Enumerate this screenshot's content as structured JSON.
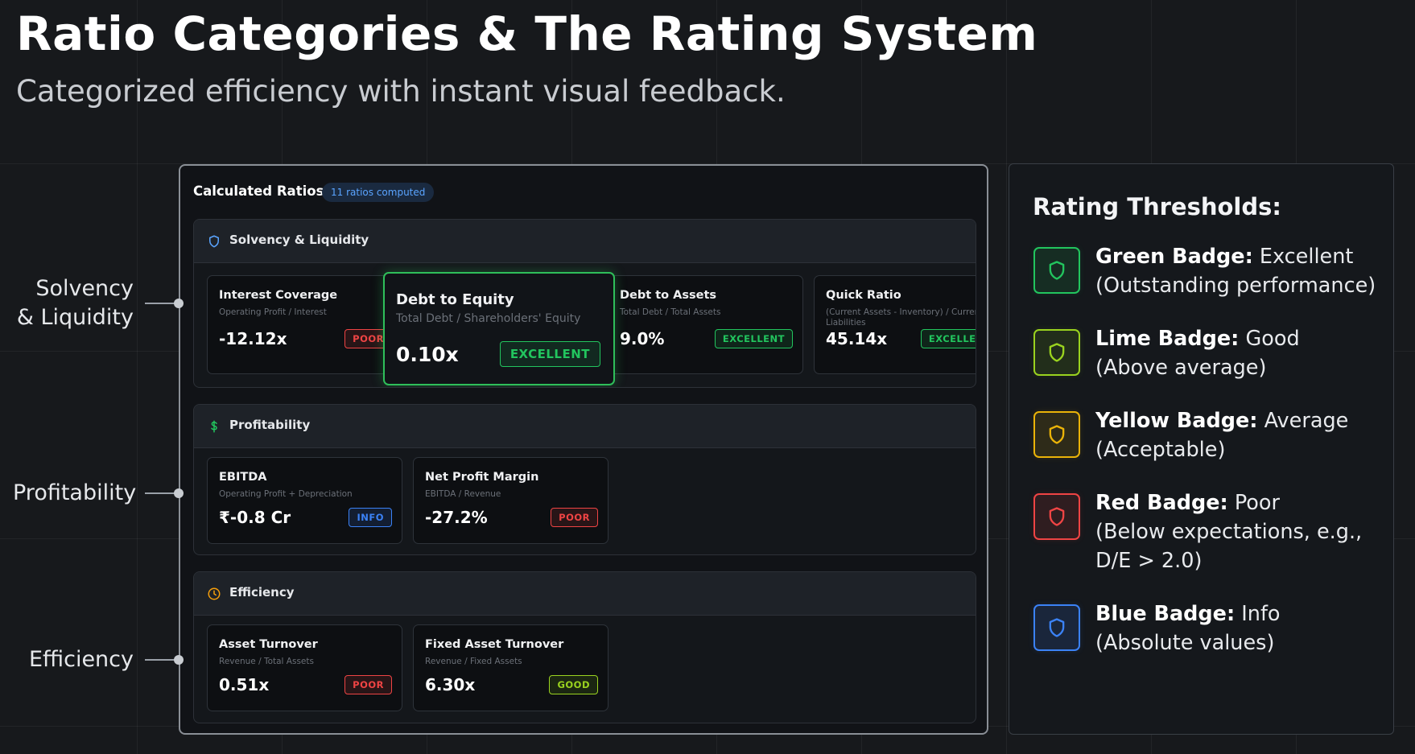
{
  "header": {
    "title": "Ratio Categories & The Rating System",
    "subtitle": "Categorized efficiency with instant visual feedback."
  },
  "side_labels": [
    "Solvency & Liquidity",
    "Profitability",
    "Efficiency"
  ],
  "panel": {
    "title": "Calculated Ratios",
    "badge": "11 ratios computed",
    "sections": [
      {
        "title": "Solvency & Liquidity",
        "cards": [
          {
            "name": "Interest Coverage",
            "formula": "Operating Profit / Interest",
            "value": "-12.12x",
            "rating": "POOR",
            "tone": "red"
          },
          {
            "name": "Debt to Equity",
            "formula": "Total Debt / Shareholders' Equity",
            "value": "0.10x",
            "rating": "EXCELLENT",
            "tone": "green"
          },
          {
            "name": "Debt to Assets",
            "formula": "Total Debt / Total Assets",
            "value": "9.0%",
            "rating": "EXCELLENT",
            "tone": "green"
          },
          {
            "name": "Quick Ratio",
            "formula": "(Current Assets - Inventory) / Current Liabilities",
            "value": "45.14x",
            "rating": "EXCELLENT",
            "tone": "green"
          }
        ]
      },
      {
        "title": "Profitability",
        "cards": [
          {
            "name": "EBITDA",
            "formula": "Operating Profit + Depreciation",
            "value": "₹-0.8 Cr",
            "rating": "INFO",
            "tone": "blue"
          },
          {
            "name": "Net Profit Margin",
            "formula": "EBITDA / Revenue",
            "value": "-27.2%",
            "rating": "POOR",
            "tone": "red"
          }
        ]
      },
      {
        "title": "Efficiency",
        "cards": [
          {
            "name": "Asset Turnover",
            "formula": "Revenue / Total Assets",
            "value": "0.51x",
            "rating": "POOR",
            "tone": "red"
          },
          {
            "name": "Fixed Asset Turnover",
            "formula": "Revenue / Fixed Assets",
            "value": "6.30x",
            "rating": "GOOD",
            "tone": "lime"
          }
        ]
      }
    ]
  },
  "thresholds": {
    "title": "Rating Thresholds:",
    "items": [
      {
        "name": "Green Badge:",
        "label": "Excellent",
        "detail": "(Outstanding performance)",
        "tone": "green"
      },
      {
        "name": "Lime Badge:",
        "label": "Good",
        "detail": "(Above average)",
        "tone": "lime"
      },
      {
        "name": "Yellow Badge:",
        "label": "Average",
        "detail": "(Acceptable)",
        "tone": "yellow"
      },
      {
        "name": "Red Badge:",
        "label": "Poor",
        "detail": "(Below expectations, e.g., D/E > 2.0)",
        "tone": "red"
      },
      {
        "name": "Blue Badge:",
        "label": "Info",
        "detail": "(Absolute values)",
        "tone": "blue"
      }
    ]
  }
}
